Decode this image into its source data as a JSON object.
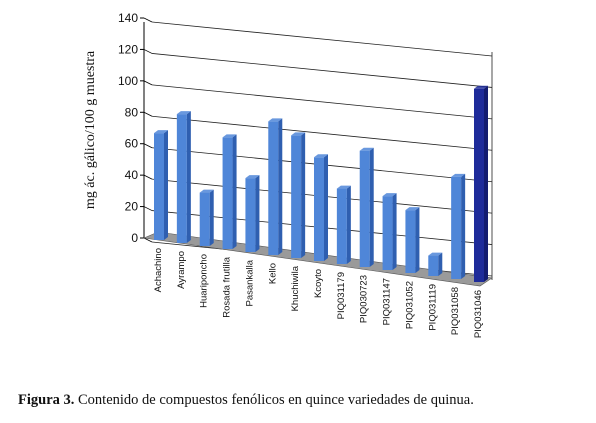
{
  "chart_data": {
    "type": "bar",
    "ylabel": "mg ác. gálico/100 g muestra",
    "xlabel": "",
    "ylim": [
      0,
      140
    ],
    "yticks": [
      0,
      20,
      40,
      60,
      80,
      100,
      120,
      140
    ],
    "grid": true,
    "categories": [
      "Achachino",
      "Ayrampo",
      "Huariponcho",
      "Rosada frutilla",
      "Pasankalla",
      "Kello",
      "Khuchiwila",
      "Kcoyto",
      "PIQ031179",
      "PIQ030723",
      "PIQ031147",
      "PIQ031052",
      "PIQ031119",
      "PIQ031058",
      "PIQ031046"
    ],
    "values": [
      68,
      82,
      34,
      71,
      47,
      85,
      78,
      66,
      48,
      74,
      47,
      40,
      13,
      65,
      123
    ],
    "colors": {
      "bar": "#4F86D8",
      "bar_dark": "#2F5FB0",
      "highlight": "#1E2B9A",
      "highlight_dark": "#131C70",
      "floor": "#9A9A9A"
    }
  },
  "caption": {
    "prefix": "Figura 3.",
    "text": " Contenido de compuestos fenólicos en quince variedades de quinua."
  }
}
